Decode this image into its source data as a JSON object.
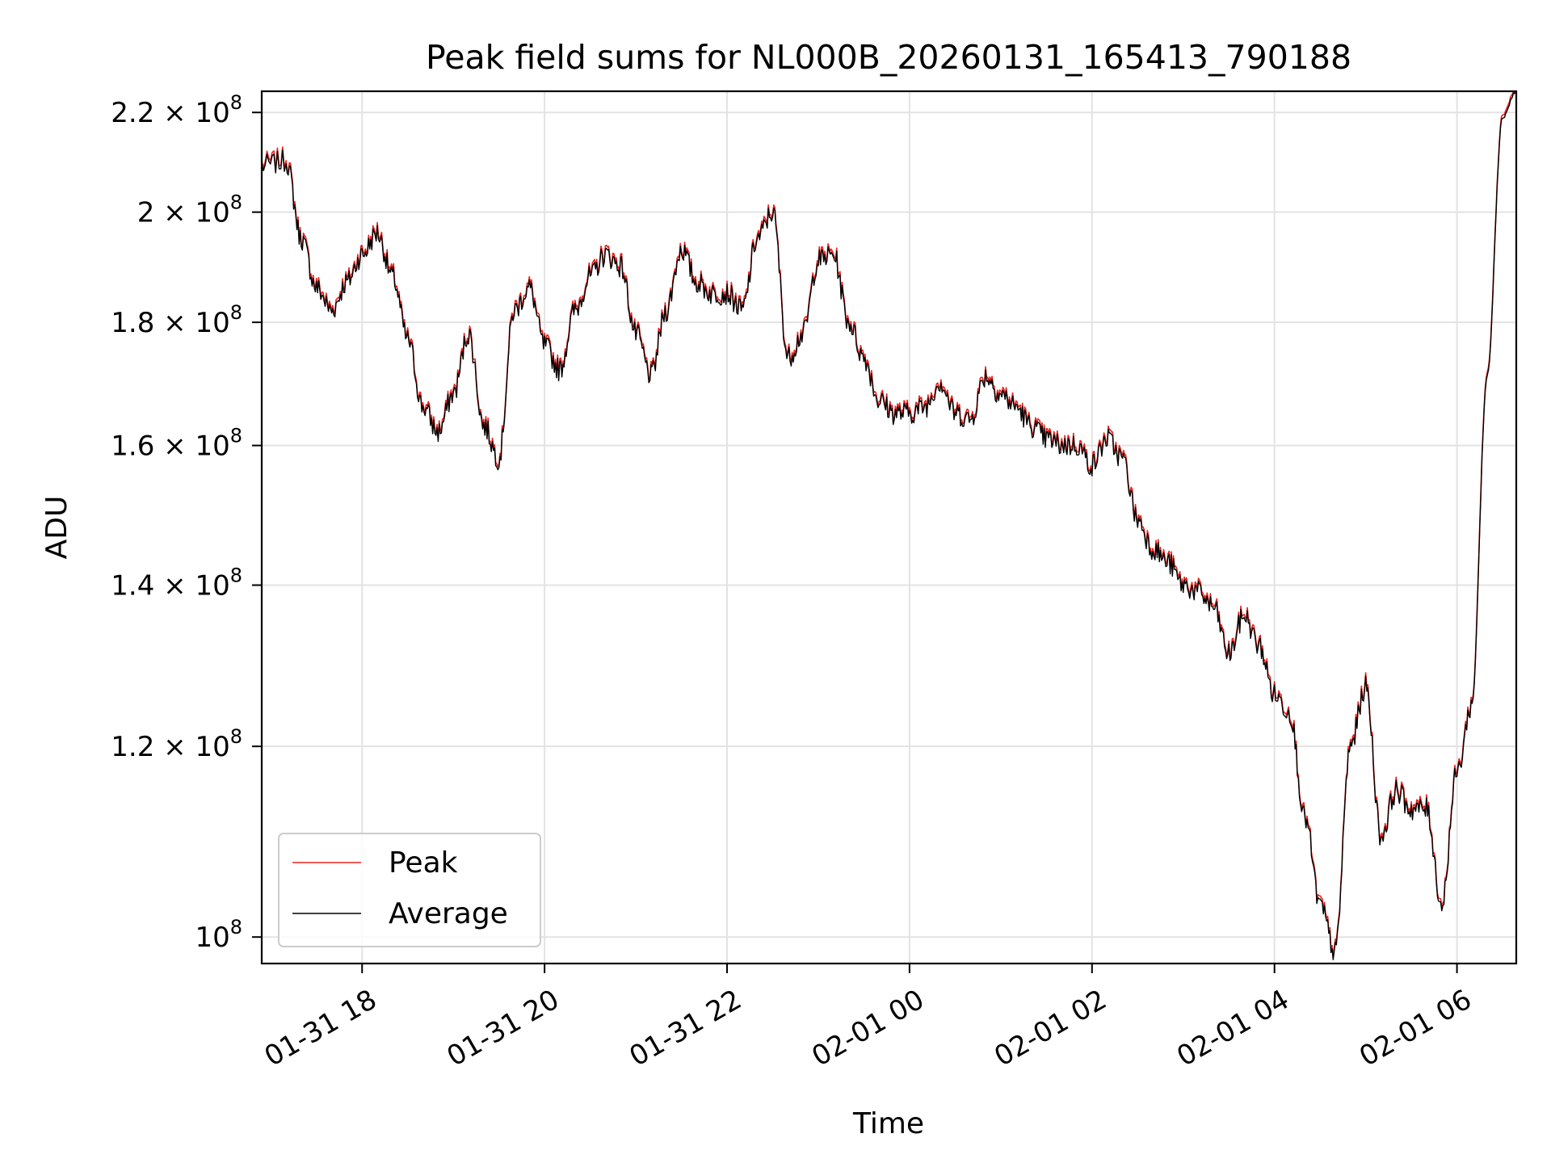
{
  "chart_data": {
    "type": "line",
    "title": "Peak field sums for NL000B_20260131_165413_790188",
    "xlabel": "Time",
    "ylabel": "ADU",
    "yscale": "log",
    "grid": true,
    "legend_position": "lower-left",
    "x_ticks": [
      "01-31 18",
      "01-31 20",
      "01-31 22",
      "02-01 00",
      "02-01 02",
      "02-01 04",
      "02-01 06"
    ],
    "y_ticks": [
      {
        "value": 100000000,
        "mantissa": "",
        "exponent": "8"
      },
      {
        "value": 120000000,
        "mantissa": "1.2",
        "exponent": "8"
      },
      {
        "value": 140000000,
        "mantissa": "1.4",
        "exponent": "8"
      },
      {
        "value": 160000000,
        "mantissa": "1.6",
        "exponent": "8"
      },
      {
        "value": 180000000,
        "mantissa": "1.8",
        "exponent": "8"
      },
      {
        "value": 200000000,
        "mantissa": "2",
        "exponent": "8"
      },
      {
        "value": 220000000,
        "mantissa": "2.2",
        "exponent": "8"
      }
    ],
    "xlim": [
      "2026-01-31 16:54",
      "2026-02-01 06:39"
    ],
    "ylim": [
      97500000,
      224500000
    ],
    "x_label_rotation": 30,
    "series": [
      {
        "name": "Peak",
        "color": "#e8231e",
        "offset_factor": 1.003
      },
      {
        "name": "Average",
        "color": "#000000",
        "offset_factor": 1.0
      }
    ],
    "x": [
      "01-31 16:54",
      "01-31 17:10",
      "01-31 17:20",
      "01-31 17:30",
      "01-31 17:40",
      "01-31 17:50",
      "01-31 18:00",
      "01-31 18:10",
      "01-31 18:20",
      "01-31 18:30",
      "01-31 18:40",
      "01-31 18:50",
      "01-31 19:00",
      "01-31 19:10",
      "01-31 19:20",
      "01-31 19:30",
      "01-31 19:40",
      "01-31 19:50",
      "01-31 20:00",
      "01-31 20:10",
      "01-31 20:20",
      "01-31 20:30",
      "01-31 20:40",
      "01-31 20:50",
      "01-31 21:00",
      "01-31 21:10",
      "01-31 21:20",
      "01-31 21:30",
      "01-31 21:40",
      "01-31 21:50",
      "01-31 22:00",
      "01-31 22:10",
      "01-31 22:20",
      "01-31 22:30",
      "01-31 22:40",
      "01-31 22:50",
      "01-31 23:00",
      "01-31 23:10",
      "01-31 23:20",
      "01-31 23:30",
      "01-31 23:40",
      "01-31 23:50",
      "02-01 00:00",
      "02-01 00:10",
      "02-01 00:20",
      "02-01 00:30",
      "02-01 00:40",
      "02-01 00:50",
      "02-01 01:00",
      "02-01 01:10",
      "02-01 01:20",
      "02-01 01:30",
      "02-01 01:40",
      "02-01 01:50",
      "02-01 02:00",
      "02-01 02:10",
      "02-01 02:20",
      "02-01 02:30",
      "02-01 02:40",
      "02-01 02:50",
      "02-01 03:00",
      "02-01 03:10",
      "02-01 03:20",
      "02-01 03:30",
      "02-01 03:40",
      "02-01 03:50",
      "02-01 04:00",
      "02-01 04:10",
      "02-01 04:20",
      "02-01 04:30",
      "02-01 04:40",
      "02-01 04:50",
      "02-01 05:00",
      "02-01 05:10",
      "02-01 05:20",
      "02-01 05:30",
      "02-01 05:40",
      "02-01 05:50",
      "02-01 06:00",
      "02-01 06:10",
      "02-01 06:20",
      "02-01 06:30",
      "02-01 06:39"
    ],
    "values": [
      209,
      210,
      195,
      186,
      182,
      187,
      192,
      196,
      188,
      177,
      166,
      162,
      168,
      178,
      163,
      158,
      182,
      186,
      176,
      172,
      182,
      188,
      192,
      190,
      178,
      171,
      182,
      193,
      187,
      185,
      185,
      182,
      195,
      200,
      174,
      178,
      191,
      192,
      180,
      174,
      167,
      165,
      165,
      166,
      170,
      165,
      164,
      171,
      168,
      166,
      163,
      161,
      160,
      160,
      157,
      161,
      158,
      149,
      145,
      143,
      140,
      139,
      137,
      131,
      136,
      132,
      126,
      124,
      112,
      103,
      98.5,
      120,
      127,
      110,
      115,
      113,
      113,
      103,
      117,
      125,
      171,
      219,
      224.5
    ]
  }
}
